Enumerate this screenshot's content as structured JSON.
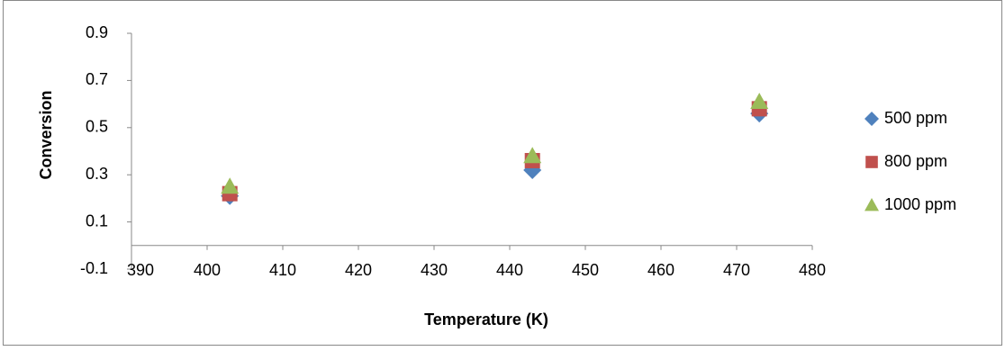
{
  "chart_data": {
    "type": "scatter",
    "xlabel": "Temperature (K)",
    "ylabel": "Conversion",
    "xlim": [
      390,
      480
    ],
    "xticks": [
      390,
      400,
      410,
      420,
      430,
      440,
      450,
      460,
      470,
      480
    ],
    "ylim": [
      -0.1,
      0.9
    ],
    "yticks": [
      -0.1,
      0.1,
      0.3,
      0.5,
      0.7,
      0.9
    ],
    "legend": "right",
    "series": [
      {
        "name": "500 ppm",
        "color": "#4f81bd",
        "marker": "diamond",
        "x": [
          403,
          443,
          473
        ],
        "values": [
          0.21,
          0.32,
          0.56
        ]
      },
      {
        "name": "800 ppm",
        "color": "#c0504d",
        "marker": "square",
        "x": [
          403,
          443,
          473
        ],
        "values": [
          0.22,
          0.36,
          0.58
        ]
      },
      {
        "name": "1000 ppm",
        "color": "#9bbb59",
        "marker": "triangle",
        "x": [
          403,
          443,
          473
        ],
        "values": [
          0.25,
          0.38,
          0.61
        ]
      }
    ]
  }
}
